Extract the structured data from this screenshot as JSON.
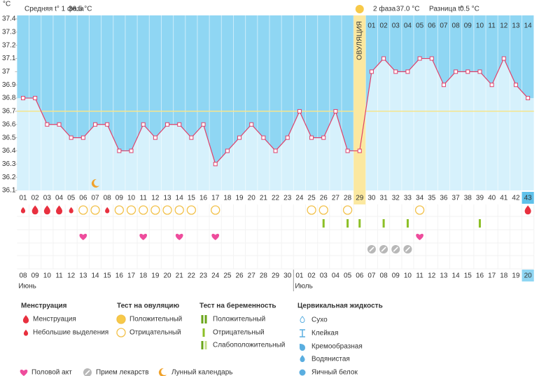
{
  "header": {
    "phase1_label": "Средняя t° 1 фаза",
    "phase1_value": "36.5 °C",
    "phase2_label": "2 фаза",
    "phase2_value": "37.0 °C",
    "diff_label": "Разница t°",
    "diff_value": "0.5 °C"
  },
  "chart_data": {
    "type": "line",
    "y_label": "°C",
    "categories": [
      "01",
      "02",
      "03",
      "04",
      "05",
      "06",
      "07",
      "08",
      "09",
      "10",
      "11",
      "12",
      "13",
      "14",
      "15",
      "16",
      "17",
      "18",
      "19",
      "20",
      "21",
      "22",
      "23",
      "24",
      "25",
      "26",
      "27",
      "28",
      "29",
      "30",
      "31",
      "32",
      "33",
      "34",
      "35",
      "36",
      "37",
      "38",
      "39",
      "40",
      "41",
      "42",
      "43"
    ],
    "values": [
      36.8,
      36.8,
      36.6,
      36.6,
      36.5,
      36.5,
      36.6,
      36.6,
      36.4,
      36.4,
      36.6,
      36.5,
      36.6,
      36.6,
      36.5,
      36.6,
      36.3,
      36.4,
      36.5,
      36.6,
      36.5,
      36.4,
      36.5,
      36.7,
      36.5,
      36.5,
      36.7,
      36.4,
      36.4,
      37.0,
      37.1,
      37.0,
      37.0,
      37.1,
      37.1,
      36.9,
      37.0,
      37.0,
      37.0,
      36.9,
      37.1,
      36.9,
      36.8
    ],
    "color": "#e0406a",
    "ylim": [
      36.1,
      37.4
    ],
    "yticks": [
      36.1,
      36.2,
      36.3,
      36.4,
      36.5,
      36.6,
      36.7,
      36.8,
      36.9,
      37,
      37.1,
      37.2,
      37.3,
      37.4
    ],
    "coverline": 36.7,
    "ovulation_day": 29,
    "ovulation_label": "ОВУЛЯЦИЯ",
    "phase2_days": [
      "01",
      "02",
      "03",
      "04",
      "05",
      "06",
      "07",
      "08",
      "09",
      "10",
      "11",
      "12",
      "13",
      "14"
    ],
    "today_day": 43,
    "dates": [
      {
        "label": "08",
        "weekend": true
      },
      {
        "label": "09",
        "weekend": true
      },
      {
        "label": "10",
        "weekend": false
      },
      {
        "label": "11",
        "weekend": false
      },
      {
        "label": "12",
        "weekend": false
      },
      {
        "label": "13",
        "weekend": false
      },
      {
        "label": "14",
        "weekend": false
      },
      {
        "label": "15",
        "weekend": true
      },
      {
        "label": "16",
        "weekend": true
      },
      {
        "label": "17",
        "weekend": false
      },
      {
        "label": "18",
        "weekend": false
      },
      {
        "label": "19",
        "weekend": false
      },
      {
        "label": "20",
        "weekend": false
      },
      {
        "label": "21",
        "weekend": false
      },
      {
        "label": "22",
        "weekend": true
      },
      {
        "label": "23",
        "weekend": true
      },
      {
        "label": "24",
        "weekend": false
      },
      {
        "label": "25",
        "weekend": false
      },
      {
        "label": "26",
        "weekend": false
      },
      {
        "label": "27",
        "weekend": false
      },
      {
        "label": "28",
        "weekend": false
      },
      {
        "label": "29",
        "weekend": true
      },
      {
        "label": "30",
        "weekend": true
      },
      {
        "label": "01",
        "weekend": false
      },
      {
        "label": "02",
        "weekend": false
      },
      {
        "label": "03",
        "weekend": false
      },
      {
        "label": "04",
        "weekend": false
      },
      {
        "label": "05",
        "weekend": false
      },
      {
        "label": "06",
        "weekend": true
      },
      {
        "label": "07",
        "weekend": true
      },
      {
        "label": "08",
        "weekend": false
      },
      {
        "label": "09",
        "weekend": false
      },
      {
        "label": "10",
        "weekend": false
      },
      {
        "label": "11",
        "weekend": false
      },
      {
        "label": "12",
        "weekend": false
      },
      {
        "label": "13",
        "weekend": true
      },
      {
        "label": "14",
        "weekend": true
      },
      {
        "label": "15",
        "weekend": false
      },
      {
        "label": "16",
        "weekend": false
      },
      {
        "label": "17",
        "weekend": false
      },
      {
        "label": "18",
        "weekend": false
      },
      {
        "label": "19",
        "weekend": false
      },
      {
        "label": "20",
        "weekend": false
      }
    ],
    "months": [
      {
        "label": "Июнь",
        "from_day": 1
      },
      {
        "label": "Июль",
        "from_day": 24
      }
    ],
    "markers": {
      "menstruation": [
        2,
        3,
        4,
        43
      ],
      "spotting": [
        1,
        5,
        8
      ],
      "ovulation_test_negative": [
        6,
        7,
        9,
        10,
        11,
        12,
        13,
        14,
        15,
        17,
        25,
        26,
        28,
        34
      ],
      "pregnancy_test_negative": [
        26,
        28,
        29,
        31,
        33,
        39
      ],
      "intercourse": [
        6,
        11,
        14,
        17,
        34
      ],
      "medication": [
        30,
        31,
        32,
        33
      ],
      "lunar": [
        7
      ]
    }
  },
  "legend": {
    "menstruation": {
      "title": "Менструация",
      "items": [
        "Менструация",
        "Небольшие выделения"
      ]
    },
    "ovulation_test": {
      "title": "Тест на овуляцию",
      "items": [
        "Положительный",
        "Отрицательный"
      ]
    },
    "pregnancy_test": {
      "title": "Тест на беременность",
      "items": [
        "Положительный",
        "Отрицательный",
        "Слабоположительный"
      ]
    },
    "cervical": {
      "title": "Цервикальная жидкость",
      "items": [
        "Сухо",
        "Клейкая",
        "Кремообразная",
        "Водянистая",
        "Яичный белок"
      ]
    },
    "other": [
      "Половой акт",
      "Прием лекарств",
      "Лунный календарь"
    ]
  }
}
